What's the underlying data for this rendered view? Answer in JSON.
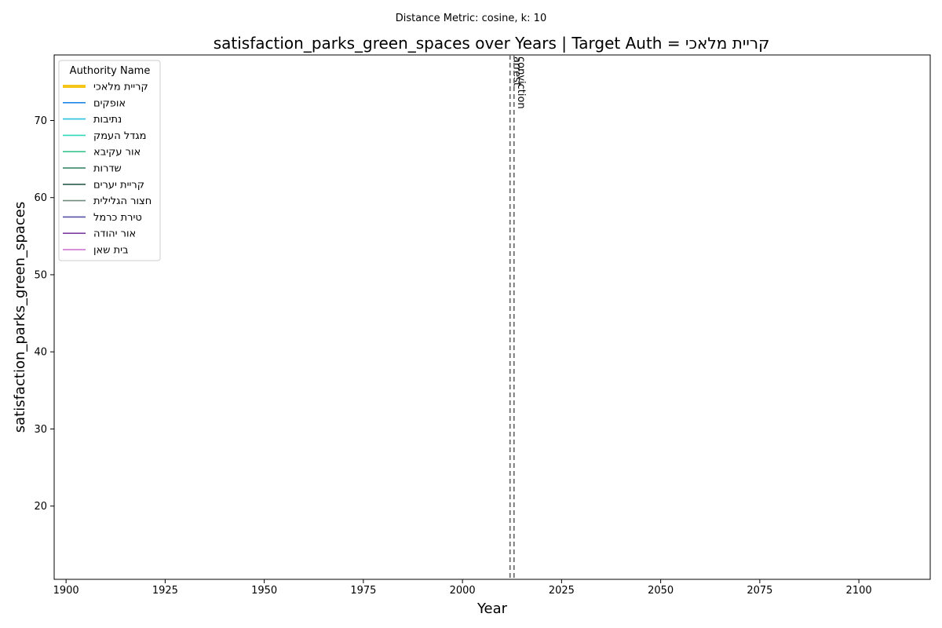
{
  "chart_data": {
    "type": "line",
    "suptitle": "Distance Metric: cosine, k: 10",
    "title": "satisfaction_parks_green_spaces over Years | Target Auth = קריית מלאכי",
    "xlabel": "Year",
    "ylabel": "satisfaction_parks_green_spaces",
    "xlim": [
      1897,
      2118
    ],
    "ylim": [
      10.5,
      78.5
    ],
    "xticks": [
      1900,
      1925,
      1950,
      1975,
      2000,
      2025,
      2050,
      2075,
      2100
    ],
    "yticks": [
      20,
      30,
      40,
      50,
      60,
      70
    ],
    "grid": false,
    "legend": {
      "title": "Authority Name",
      "placement": "top-left",
      "entries": [
        {
          "label": "קריית מלאכי",
          "color": "#f5c518",
          "target": true
        },
        {
          "label": "אופקים",
          "color": "#1f88e5",
          "target": false
        },
        {
          "label": "נתיבות",
          "color": "#29c0e0",
          "target": false
        },
        {
          "label": "מגדל העמק",
          "color": "#2fd9b9",
          "target": false
        },
        {
          "label": "אור עקיבא",
          "color": "#3cc48e",
          "target": false
        },
        {
          "label": "שדרות",
          "color": "#2e7d5e",
          "target": false
        },
        {
          "label": "קריית יערים",
          "color": "#2f5c4a",
          "target": false
        },
        {
          "label": "חצור הגלילית",
          "color": "#6f8c7f",
          "target": false
        },
        {
          "label": "טירת כרמל",
          "color": "#5550a8",
          "target": false
        },
        {
          "label": "אור יהודה",
          "color": "#7a3ea0",
          "target": false
        },
        {
          "label": "בית שאן",
          "color": "#cc6fd0",
          "target": false
        }
      ]
    },
    "series": [],
    "vlines": [
      {
        "x": 2012,
        "label": "arrest"
      },
      {
        "x": 2013,
        "label": "conviction"
      }
    ]
  }
}
